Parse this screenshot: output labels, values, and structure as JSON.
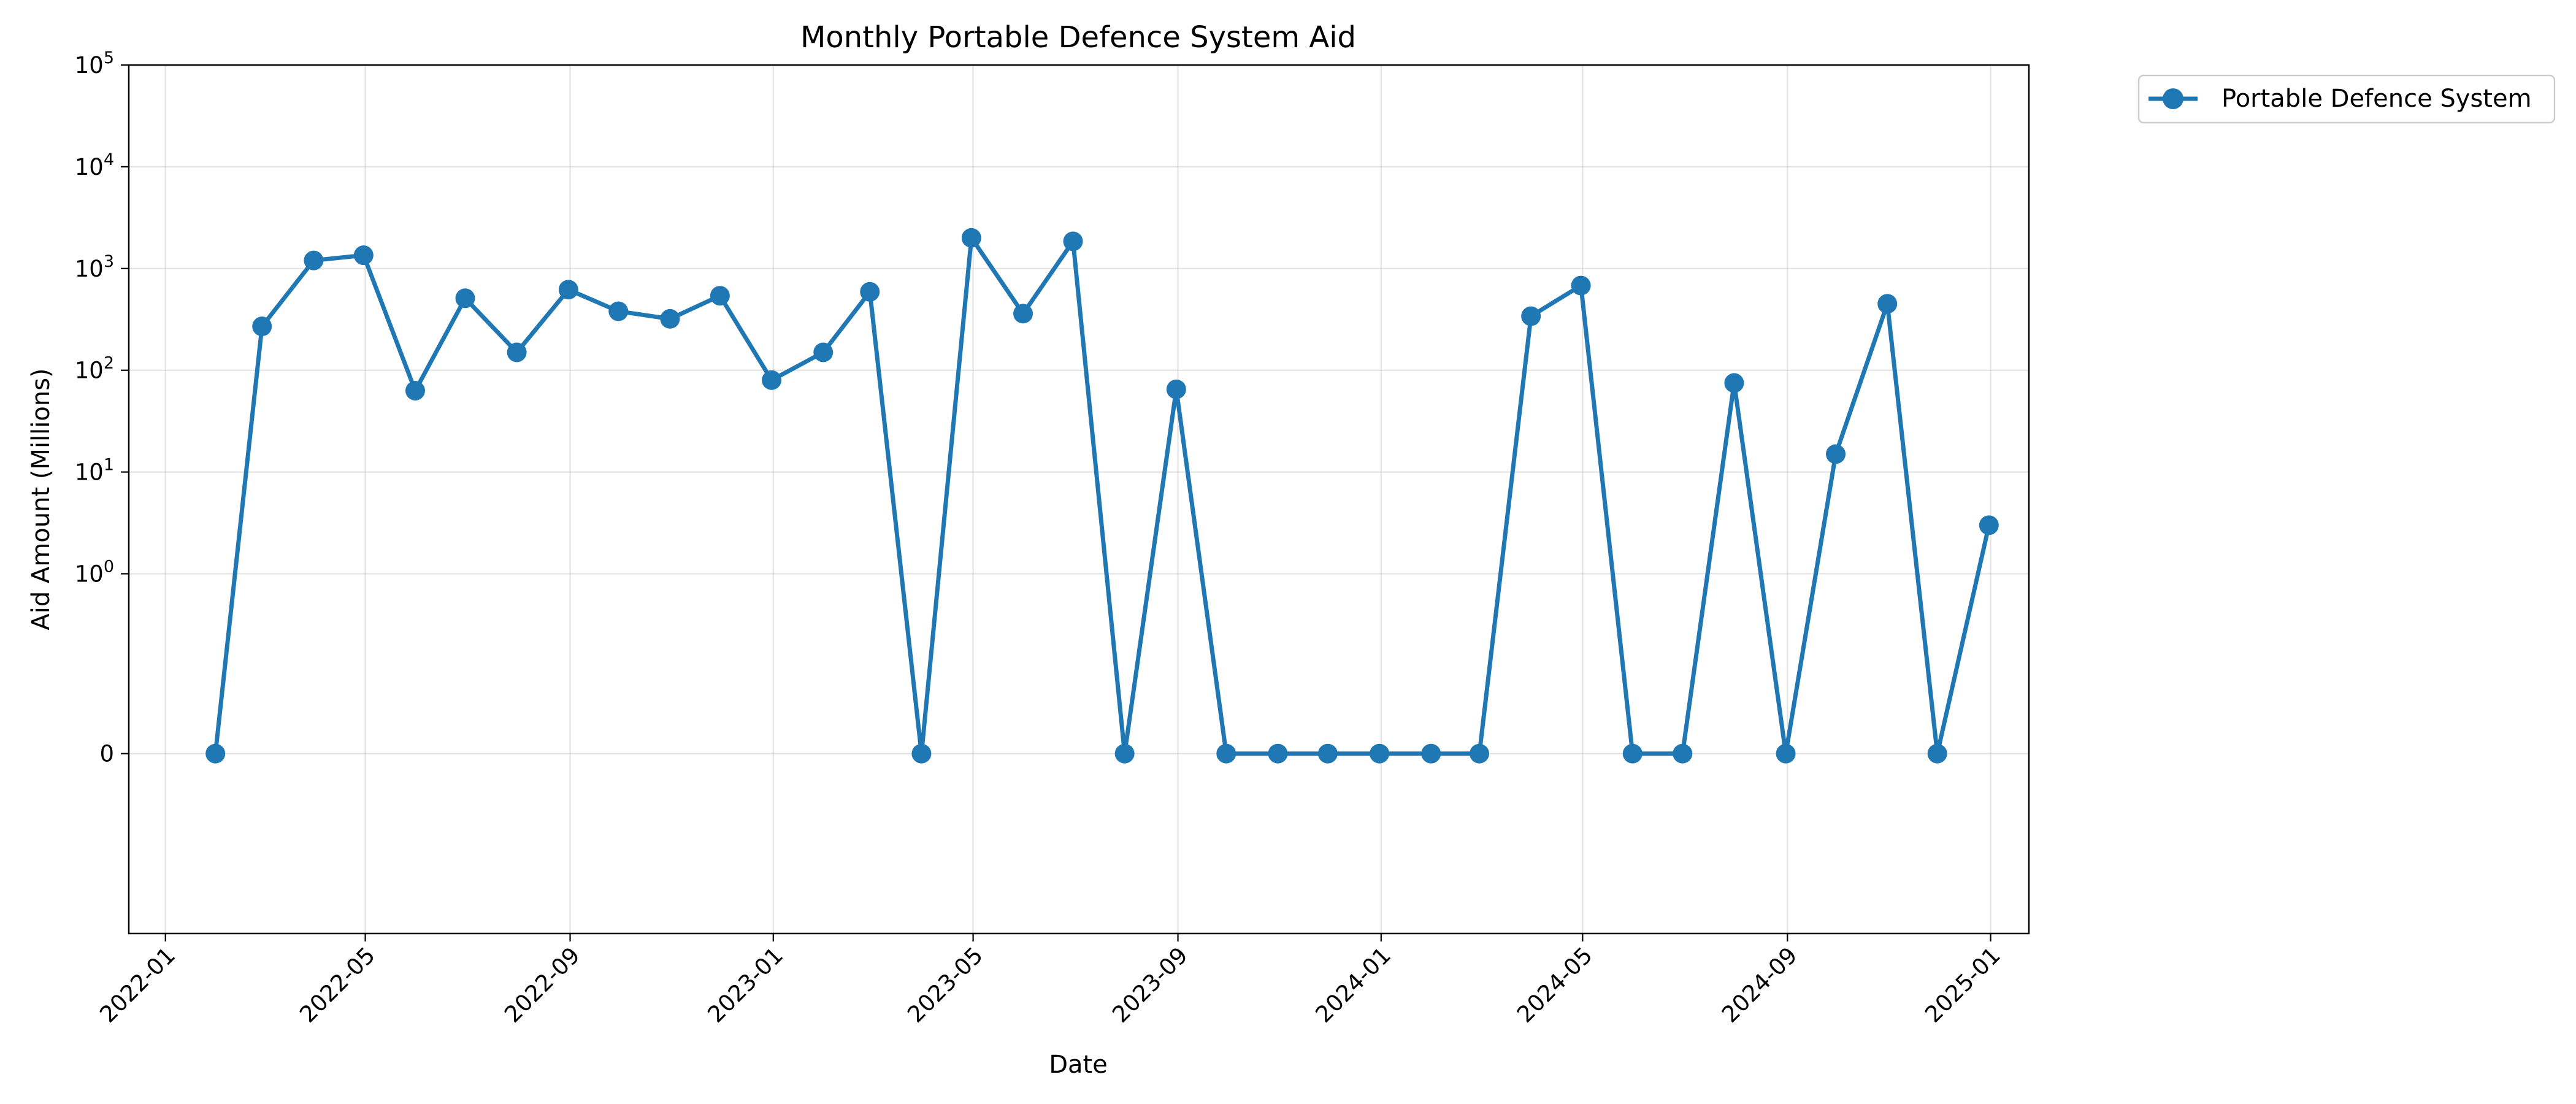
{
  "chart_data": {
    "type": "line",
    "title": "Monthly Portable Defence System Aid",
    "xlabel": "Date",
    "ylabel": "Aid Amount (Millions)",
    "yscale": "symlog",
    "ylim": [
      -1,
      100000
    ],
    "xlim": [
      "2021-12-10",
      "2025-01-24"
    ],
    "grid": true,
    "legend_position": "outside-top-right",
    "x_tick_labels": [
      "2022-01",
      "2022-05",
      "2022-09",
      "2023-01",
      "2023-05",
      "2023-09",
      "2024-01",
      "2024-05",
      "2024-09",
      "2025-01"
    ],
    "y_ticks": [
      {
        "value": 0,
        "base": "0",
        "exp": ""
      },
      {
        "value": 1,
        "base": "10",
        "exp": "0"
      },
      {
        "value": 10,
        "base": "10",
        "exp": "1"
      },
      {
        "value": 100,
        "base": "10",
        "exp": "2"
      },
      {
        "value": 1000,
        "base": "10",
        "exp": "3"
      },
      {
        "value": 10000,
        "base": "10",
        "exp": "4"
      },
      {
        "value": 100000,
        "base": "10",
        "exp": "5"
      }
    ],
    "series": [
      {
        "name": "Portable Defence System",
        "color": "#1f77b4",
        "marker": "circle",
        "x": [
          "2022-01-31",
          "2022-02-28",
          "2022-03-31",
          "2022-04-30",
          "2022-05-31",
          "2022-06-30",
          "2022-07-31",
          "2022-08-31",
          "2022-09-30",
          "2022-10-31",
          "2022-11-30",
          "2022-12-31",
          "2023-01-31",
          "2023-02-28",
          "2023-03-31",
          "2023-04-30",
          "2023-05-31",
          "2023-06-30",
          "2023-07-31",
          "2023-08-31",
          "2023-09-30",
          "2023-10-31",
          "2023-11-30",
          "2023-12-31",
          "2024-01-31",
          "2024-02-29",
          "2024-03-31",
          "2024-04-30",
          "2024-05-31",
          "2024-06-30",
          "2024-07-31",
          "2024-08-31",
          "2024-09-30",
          "2024-10-31",
          "2024-11-30",
          "2024-12-31"
        ],
        "values": [
          0,
          270,
          1200,
          1350,
          63,
          510,
          150,
          620,
          380,
          320,
          540,
          80,
          150,
          590,
          0,
          2000,
          360,
          1850,
          0,
          65,
          0,
          0,
          0,
          0,
          0,
          0,
          340,
          680,
          0,
          0,
          75,
          0,
          15,
          450,
          0,
          3
        ]
      }
    ]
  }
}
